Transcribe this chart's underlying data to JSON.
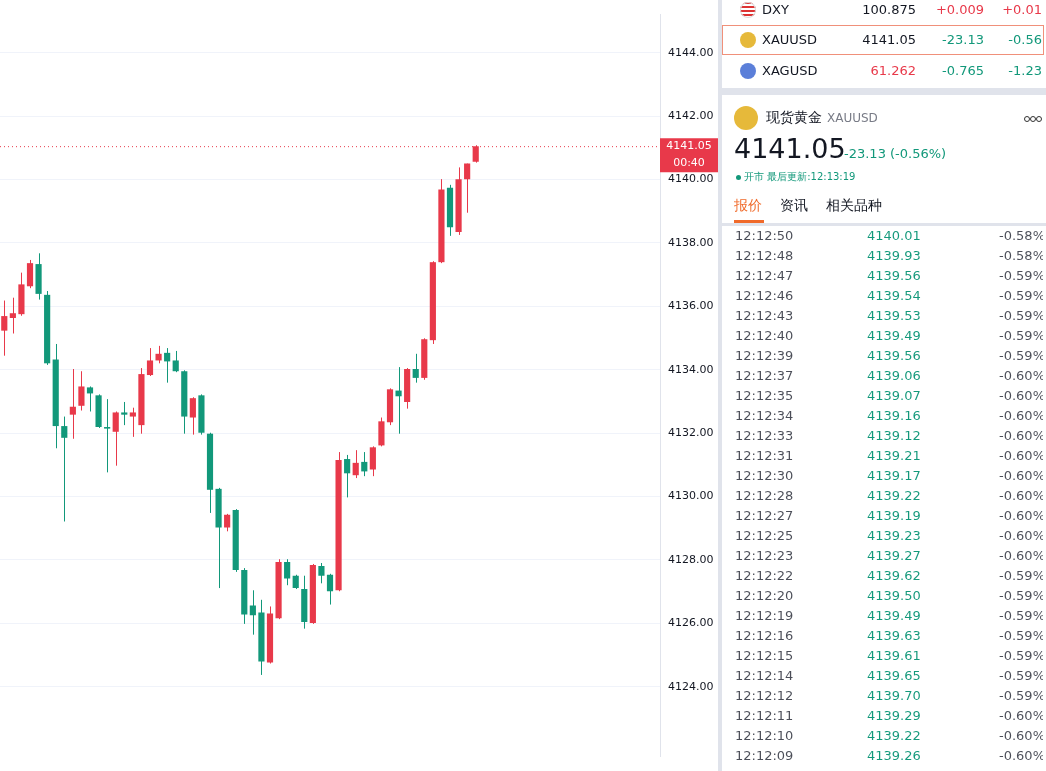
{
  "chart_data": [
    {
      "type": "candlestick",
      "categories": [
        null,
        null,
        null,
        null,
        null,
        null,
        null,
        null,
        null,
        null,
        null,
        null,
        null,
        null,
        null,
        null,
        null,
        null,
        null,
        null,
        null,
        null,
        null,
        null,
        null,
        null,
        null,
        null,
        null,
        null,
        null,
        null,
        null,
        null,
        null,
        null,
        null,
        null,
        null,
        null,
        null,
        null,
        null,
        null,
        null,
        null,
        null,
        null,
        null,
        null,
        null,
        null,
        null,
        null,
        null,
        null,
        null,
        null,
        null,
        null,
        null,
        null,
        null,
        null,
        null,
        null,
        null,
        null,
        null,
        null,
        null,
        null,
        null,
        null,
        null,
        null,
        null
      ],
      "ohlc": [
        [
          4135.23,
          4136.18,
          4134.44,
          4135.69
        ],
        [
          4135.63,
          4136.27,
          4135.14,
          4135.78
        ],
        [
          4135.75,
          4137.06,
          4135.7,
          4136.69
        ],
        [
          4136.63,
          4137.46,
          4136.57,
          4137.36
        ],
        [
          4137.33,
          4137.67,
          4136.21,
          4136.39
        ],
        [
          4136.36,
          4136.48,
          4134.15,
          4134.2
        ],
        [
          4134.32,
          4134.81,
          4131.52,
          4132.22
        ],
        [
          4132.22,
          4132.52,
          4129.21,
          4131.85
        ],
        [
          4132.58,
          4134.02,
          4131.82,
          4132.83
        ],
        [
          4132.86,
          4133.95,
          4132.71,
          4133.47
        ],
        [
          4133.44,
          4133.47,
          4132.68,
          4133.25
        ],
        [
          4133.19,
          4133.22,
          4132.16,
          4132.19
        ],
        [
          4132.19,
          4133.07,
          4130.76,
          4132.14
        ],
        [
          4132.04,
          4132.68,
          4130.97,
          4132.65
        ],
        [
          4132.65,
          4132.98,
          4132.25,
          4132.58
        ],
        [
          4132.52,
          4132.8,
          4131.88,
          4132.65
        ],
        [
          4132.25,
          4134.05,
          4131.98,
          4133.86
        ],
        [
          4133.83,
          4134.68,
          4133.8,
          4134.29
        ],
        [
          4134.29,
          4134.75,
          4134.2,
          4134.5
        ],
        [
          4134.53,
          4134.68,
          4133.59,
          4134.26
        ],
        [
          4134.29,
          4134.59,
          4133.92,
          4133.95
        ],
        [
          4133.95,
          4133.98,
          4131.98,
          4132.52
        ],
        [
          4132.49,
          4133.13,
          4131.95,
          4133.1
        ],
        [
          4133.19,
          4133.22,
          4131.95,
          4132.01
        ],
        [
          4131.98,
          4132.01,
          4129.48,
          4130.21
        ],
        [
          4130.24,
          4130.27,
          4127.11,
          4129.02
        ],
        [
          4129.02,
          4129.45,
          4128.9,
          4129.42
        ],
        [
          4129.57,
          4129.6,
          4127.62,
          4127.68
        ],
        [
          4127.68,
          4127.74,
          4125.98,
          4126.28
        ],
        [
          4126.56,
          4127.04,
          4125.64,
          4126.25
        ],
        [
          4126.34,
          4126.74,
          4124.37,
          4124.79
        ],
        [
          4124.76,
          4126.53,
          4124.73,
          4126.31
        ],
        [
          4126.16,
          4128.02,
          4126.13,
          4127.93
        ],
        [
          4127.93,
          4128.02,
          4127.2,
          4127.41
        ],
        [
          4127.5,
          4127.53,
          4127.08,
          4127.11
        ],
        [
          4127.08,
          4127.5,
          4125.83,
          4126.04
        ],
        [
          4126.01,
          4127.87,
          4125.98,
          4127.84
        ],
        [
          4127.81,
          4127.9,
          4127.26,
          4127.5
        ],
        [
          4127.53,
          4127.56,
          4126.59,
          4127.01
        ],
        [
          4127.04,
          4131.4,
          4127.01,
          4131.15
        ],
        [
          4131.18,
          4131.31,
          4129.97,
          4130.73
        ],
        [
          4130.67,
          4131.46,
          4130.58,
          4131.06
        ],
        [
          4131.09,
          4131.4,
          4130.64,
          4130.79
        ],
        [
          4130.85,
          4131.58,
          4130.64,
          4131.55
        ],
        [
          4131.61,
          4132.49,
          4131.58,
          4132.37
        ],
        [
          4132.34,
          4133.41,
          4132.25,
          4133.38
        ],
        [
          4133.34,
          4134.08,
          4131.98,
          4133.16
        ],
        [
          4132.98,
          4134.05,
          4132.77,
          4134.02
        ],
        [
          4134.02,
          4134.5,
          4133.59,
          4133.74
        ],
        [
          4133.74,
          4134.99,
          4133.68,
          4134.96
        ],
        [
          4134.93,
          4137.42,
          4134.81,
          4137.39
        ],
        [
          4137.39,
          4140.01,
          4137.36,
          4139.68
        ],
        [
          4139.74,
          4139.83,
          4138.22,
          4138.49
        ],
        [
          4138.34,
          4140.38,
          4138.25,
          4140.01
        ],
        [
          4140.01,
          4140.5,
          4138.95,
          4140.5
        ],
        [
          4140.56,
          4141.08,
          4140.53,
          4141.05
        ],
        null,
        null,
        null,
        null,
        null,
        null,
        null,
        null,
        null,
        null,
        null,
        null,
        null,
        null,
        null,
        null,
        null,
        null,
        null,
        null,
        null
      ],
      "colors": [
        "#e8394a",
        "#e8394a",
        "#e8394a",
        "#e8394a",
        "#12987a",
        "#12987a",
        "#12987a",
        "#12987a",
        "#e8394a",
        "#e8394a",
        "#12987a",
        "#12987a",
        "#12987a",
        "#e8394a",
        "#12987a",
        "#e8394a",
        "#e8394a",
        "#e8394a",
        "#e8394a",
        "#12987a",
        "#12987a",
        "#12987a",
        "#e8394a",
        "#12987a",
        "#12987a",
        "#12987a",
        "#e8394a",
        "#12987a",
        "#12987a",
        "#12987a",
        "#12987a",
        "#e8394a",
        "#e8394a",
        "#12987a",
        "#12987a",
        "#12987a",
        "#e8394a",
        "#12987a",
        "#12987a",
        "#e8394a",
        "#12987a",
        "#e8394a",
        "#12987a",
        "#e8394a",
        "#e8394a",
        "#e8394a",
        "#12987a",
        "#e8394a",
        "#12987a",
        "#e8394a",
        "#e8394a",
        "#e8394a",
        "#12987a",
        "#e8394a",
        "#e8394a",
        "#e8394a",
        null,
        null,
        null,
        null,
        null,
        null,
        null,
        null,
        null,
        null,
        null,
        null,
        null,
        null,
        null,
        null,
        null,
        null,
        null,
        null,
        null
      ],
      "ylim": [
        4121.8,
        4145.2
      ],
      "yticks": [
        {
          "value": 4124,
          "label": "4124.00"
        },
        {
          "value": 4126,
          "label": "4126.00"
        },
        {
          "value": 4128,
          "label": "4128.00"
        },
        {
          "value": 4130,
          "label": "4130.00"
        },
        {
          "value": 4132,
          "label": "4132.00"
        },
        {
          "value": 4134,
          "label": "4134.00"
        },
        {
          "value": 4136,
          "label": "4136.00"
        },
        {
          "value": 4138,
          "label": "4138.00"
        },
        {
          "value": 4140,
          "label": "4140.00"
        },
        {
          "value": 4142,
          "label": "4142.00"
        },
        {
          "value": 4144,
          "label": "4144.00"
        }
      ],
      "ref_lines": [
        {
          "axis": "y",
          "value": 4141.05,
          "label": "4141.05",
          "color": "#e8394a",
          "line_style": "dotted"
        }
      ],
      "annotations": [
        "00:40"
      ],
      "grid": "y",
      "tick_labels": "y"
    },
    {
      "type": "other",
      "title": "现货黄金",
      "subtitle": "XAUUSD",
      "annotations": [
        "DXY 100.875 +0.009 +0.01",
        "XAUUSD 4141.05 -23.13 -0.56",
        "XAGUSD 61.262 -0.765 -1.23",
        "4141.05",
        "-23.13 (-0.56%)",
        "开市 最后更新:12:13:19",
        "报价",
        "资讯",
        "相关品种",
        "12:12:50 4140.01 -0.58%",
        "12:12:48 4139.93 -0.58%",
        "12:12:47 4139.56 -0.59%",
        "12:12:46 4139.54 -0.59%",
        "12:12:43 4139.53 -0.59%",
        "12:12:40 4139.49 -0.59%",
        "12:12:39 4139.56 -0.59%",
        "12:12:37 4139.06 -0.60%",
        "12:12:35 4139.07 -0.60%",
        "12:12:34 4139.16 -0.60%",
        "12:12:33 4139.12 -0.60%",
        "12:12:31 4139.21 -0.60%",
        "12:12:30 4139.17 -0.60%",
        "12:12:28 4139.22 -0.60%",
        "12:12:27 4139.19 -0.60%",
        "12:12:25 4139.23 -0.60%",
        "12:12:23 4139.27 -0.60%",
        "12:12:22 4139.62 -0.59%",
        "12:12:20 4139.50 -0.59%",
        "12:12:19 4139.49 -0.59%",
        "12:12:16 4139.63 -0.59%",
        "12:12:15 4139.61 -0.59%",
        "12:12:14 4139.65 -0.59%",
        "12:12:12 4139.70 -0.59%",
        "12:12:11 4139.29 -0.60%",
        "12:12:10 4139.22 -0.60%",
        "12:12:09 4139.26 -0.60%"
      ]
    }
  ]
}
